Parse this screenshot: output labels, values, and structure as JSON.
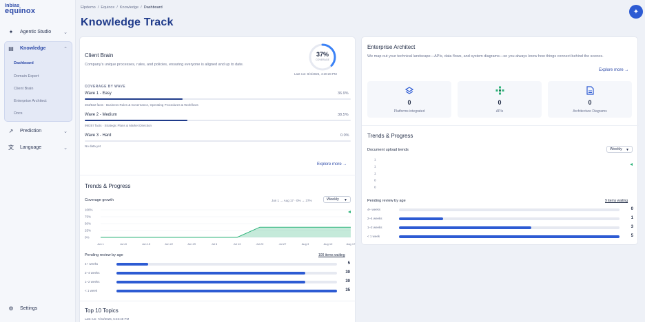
{
  "brand": {
    "line1": "Inbias",
    "line2": "equinox"
  },
  "sidebar": {
    "items": [
      {
        "label": "Agentic Studio"
      },
      {
        "label": "Knowledge"
      },
      {
        "label": "Prediction"
      },
      {
        "label": "Language"
      }
    ],
    "knowledge_sub": [
      "Dashboard",
      "Domain Expert",
      "Client Brain",
      "Enterprise Architect",
      "Docs"
    ],
    "settings_label": "Settings"
  },
  "breadcrumb": [
    "Elpdemo",
    "Equinox",
    "Knowledge",
    "Dashboard"
  ],
  "page_title": "Knowledge Track",
  "client_brain": {
    "title": "Client Brain",
    "description": "Company's unique processes, rules, and policies, ensuring everyone is aligned and up to date.",
    "coverage_percent_label": "37%",
    "coverage_word": "COVERAGE",
    "coverage_value": 37,
    "last_run": "Last run: 8/4/2026, 4:20:28 PM",
    "section_label": "COVERAGE BY WAVE",
    "waves": [
      {
        "name": "Wave 1 - Easy",
        "percent_label": "36.9%",
        "value": 0.369,
        "detail": "303/822 facts · Business Rules & Governance, Operating Procedures & Workflows"
      },
      {
        "name": "Wave 2 - Medium",
        "percent_label": "38.5%",
        "value": 0.385,
        "detail": "99/257 facts · Strategic Plans & Market Direction"
      },
      {
        "name": "Wave 3 - Hard",
        "percent_label": "0.0%",
        "value": 0,
        "detail": "No data yet"
      }
    ],
    "explore_label": "Explore more →"
  },
  "trends_left": {
    "title": "Trends & Progress",
    "coverage_label": "Coverage growth",
    "range_label": "Jun 1 → Aug 17 · 0% → 37%",
    "period_select": "Weekly",
    "pending_label": "Pending review by age",
    "waiting_label": "100 items waiting"
  },
  "coverage_chart": {
    "type": "area",
    "x": [
      "Jun 1",
      "Jun 8",
      "Jun 15",
      "Jun 22",
      "Jun 29",
      "Jul 6",
      "Jul 13",
      "Jul 20",
      "Jul 27",
      "Aug 3",
      "Aug 10",
      "Aug 17"
    ],
    "values": [
      0,
      0,
      0,
      0,
      0,
      0,
      0,
      37,
      37,
      37,
      37,
      37
    ],
    "y_ticks": [
      "100%",
      "75%",
      "50%",
      "25%",
      "0%"
    ],
    "ylim": [
      0,
      100
    ],
    "color": "#2db37a"
  },
  "pending_left": {
    "max": 35,
    "rows": [
      {
        "label": "4+ weeks",
        "value": 5
      },
      {
        "label": "2–4 weeks",
        "value": 30
      },
      {
        "label": "1–2 weeks",
        "value": 30
      },
      {
        "label": "< 1 week",
        "value": 35
      }
    ]
  },
  "top_topics": {
    "title": "Top 10 Topics",
    "last_run": "Last run: 7/23/2026, 5:46:48 PM"
  },
  "enterprise": {
    "title": "Enterprise Architect",
    "description": "We map out your technical landscape—APIs, data flows, and system diagrams—so you always know how things connect behind the scenes.",
    "explore_label": "Explore more →",
    "stats": [
      {
        "icon": "layers-icon",
        "value": "0",
        "label": "Platforms integrated"
      },
      {
        "icon": "api-network-icon",
        "value": "0",
        "label": "APIs"
      },
      {
        "icon": "document-icon",
        "value": "0",
        "label": "Architecture Diagrams"
      }
    ],
    "trends_title": "Trends & Progress",
    "doc_label": "Document upload trends",
    "period_select": "Weekly",
    "pending_label": "Pending review by age",
    "waiting_label": "9 items waiting"
  },
  "doc_chart": {
    "type": "line",
    "y_ticks": [
      "1",
      "1",
      "1",
      "0",
      "0"
    ],
    "values": []
  },
  "pending_right": {
    "max": 5,
    "rows": [
      {
        "label": "4+ weeks",
        "value": 0
      },
      {
        "label": "2–4 weeks",
        "value": 1
      },
      {
        "label": "1–2 weeks",
        "value": 3
      },
      {
        "label": "< 1 week",
        "value": 5
      }
    ]
  },
  "colors": {
    "accent": "#2d5bd3",
    "title": "#1e3a8a",
    "success": "#2db37a"
  }
}
